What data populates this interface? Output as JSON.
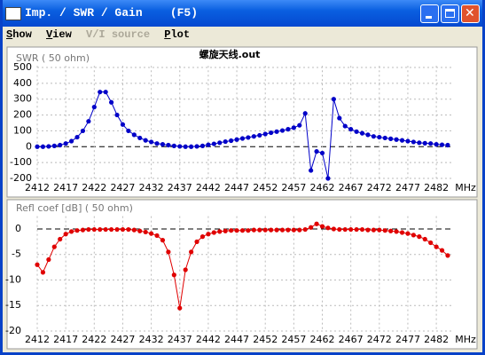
{
  "window": {
    "title": "Imp. / SWR / Gain    (F5)"
  },
  "menu": [
    "Show",
    "View",
    "V/I source",
    "Plot"
  ],
  "chart_data": [
    {
      "type": "line",
      "title": "螺旋天线.out",
      "y_label": "SWR ( 50 ohm)",
      "x_unit": "MHz",
      "x": [
        2412,
        2413,
        2414,
        2415,
        2416,
        2417,
        2418,
        2419,
        2420,
        2421,
        2422,
        2423,
        2424,
        2425,
        2426,
        2427,
        2428,
        2429,
        2430,
        2431,
        2432,
        2433,
        2434,
        2435,
        2436,
        2437,
        2438,
        2439,
        2440,
        2441,
        2442,
        2443,
        2444,
        2445,
        2446,
        2447,
        2448,
        2449,
        2450,
        2451,
        2452,
        2453,
        2454,
        2455,
        2456,
        2457,
        2458,
        2459,
        2460,
        2461,
        2462,
        2463,
        2464,
        2465,
        2466,
        2467,
        2468,
        2469,
        2470,
        2471,
        2472,
        2473,
        2474,
        2475,
        2476,
        2477,
        2478,
        2479,
        2480,
        2481,
        2482,
        2483,
        2484
      ],
      "series": [
        {
          "color": "#0000c8",
          "values": [
            0,
            0,
            2,
            5,
            10,
            20,
            35,
            60,
            100,
            160,
            250,
            345,
            345,
            280,
            200,
            140,
            100,
            75,
            55,
            40,
            30,
            20,
            15,
            10,
            5,
            2,
            0,
            0,
            2,
            5,
            12,
            18,
            25,
            32,
            38,
            45,
            52,
            58,
            65,
            72,
            80,
            88,
            95,
            102,
            110,
            120,
            135,
            210,
            -150,
            -30,
            -40,
            -200,
            300,
            180,
            130,
            110,
            95,
            85,
            75,
            65,
            60,
            55,
            50,
            45,
            40,
            35,
            30,
            25,
            22,
            20,
            15,
            12,
            10
          ]
        }
      ],
      "xlim": [
        2412,
        2485
      ],
      "ylim": [
        -200,
        510
      ],
      "xticks": [
        2412,
        2417,
        2422,
        2427,
        2432,
        2437,
        2442,
        2447,
        2452,
        2457,
        2462,
        2467,
        2472,
        2477,
        2482
      ],
      "yticks": [
        500,
        400,
        300,
        200,
        100,
        0,
        -100,
        -200
      ],
      "grid": true
    },
    {
      "type": "line",
      "y_label": "Refl coef [dB] ( 50 ohm)",
      "x_unit": "MHz",
      "x": [
        2412,
        2413,
        2414,
        2415,
        2416,
        2417,
        2418,
        2419,
        2420,
        2421,
        2422,
        2423,
        2424,
        2425,
        2426,
        2427,
        2428,
        2429,
        2430,
        2431,
        2432,
        2433,
        2434,
        2435,
        2436,
        2437,
        2438,
        2439,
        2440,
        2441,
        2442,
        2443,
        2444,
        2445,
        2446,
        2447,
        2448,
        2449,
        2450,
        2451,
        2452,
        2453,
        2454,
        2455,
        2456,
        2457,
        2458,
        2459,
        2460,
        2461,
        2462,
        2463,
        2464,
        2465,
        2466,
        2467,
        2468,
        2469,
        2470,
        2471,
        2472,
        2473,
        2474,
        2475,
        2476,
        2477,
        2478,
        2479,
        2480,
        2481,
        2482,
        2483,
        2484
      ],
      "series": [
        {
          "color": "#e00000",
          "values": [
            -7,
            -8.5,
            -6,
            -3.5,
            -2,
            -1,
            -0.5,
            -0.3,
            -0.2,
            -0.1,
            -0.1,
            -0.1,
            -0.1,
            -0.1,
            -0.1,
            -0.1,
            -0.1,
            -0.2,
            -0.4,
            -0.6,
            -0.9,
            -1.3,
            -2.2,
            -4.5,
            -9,
            -15.5,
            -8,
            -4.5,
            -2.5,
            -1.5,
            -1,
            -0.7,
            -0.5,
            -0.4,
            -0.3,
            -0.3,
            -0.3,
            -0.3,
            -0.2,
            -0.2,
            -0.2,
            -0.2,
            -0.2,
            -0.2,
            -0.2,
            -0.2,
            -0.2,
            -0.1,
            0.3,
            1,
            0.5,
            0.2,
            0,
            -0.1,
            -0.1,
            -0.1,
            -0.1,
            -0.1,
            -0.2,
            -0.2,
            -0.2,
            -0.3,
            -0.4,
            -0.5,
            -0.7,
            -0.9,
            -1.2,
            -1.5,
            -2,
            -2.7,
            -3.5,
            -4.2,
            -5.2
          ]
        }
      ],
      "xlim": [
        2412,
        2485
      ],
      "ylim": [
        -20,
        2.5
      ],
      "xticks": [
        2412,
        2417,
        2422,
        2427,
        2432,
        2437,
        2442,
        2447,
        2452,
        2457,
        2462,
        2467,
        2472,
        2477,
        2482
      ],
      "yticks": [
        0,
        -5,
        -10,
        -15,
        -20
      ],
      "grid": true
    }
  ]
}
